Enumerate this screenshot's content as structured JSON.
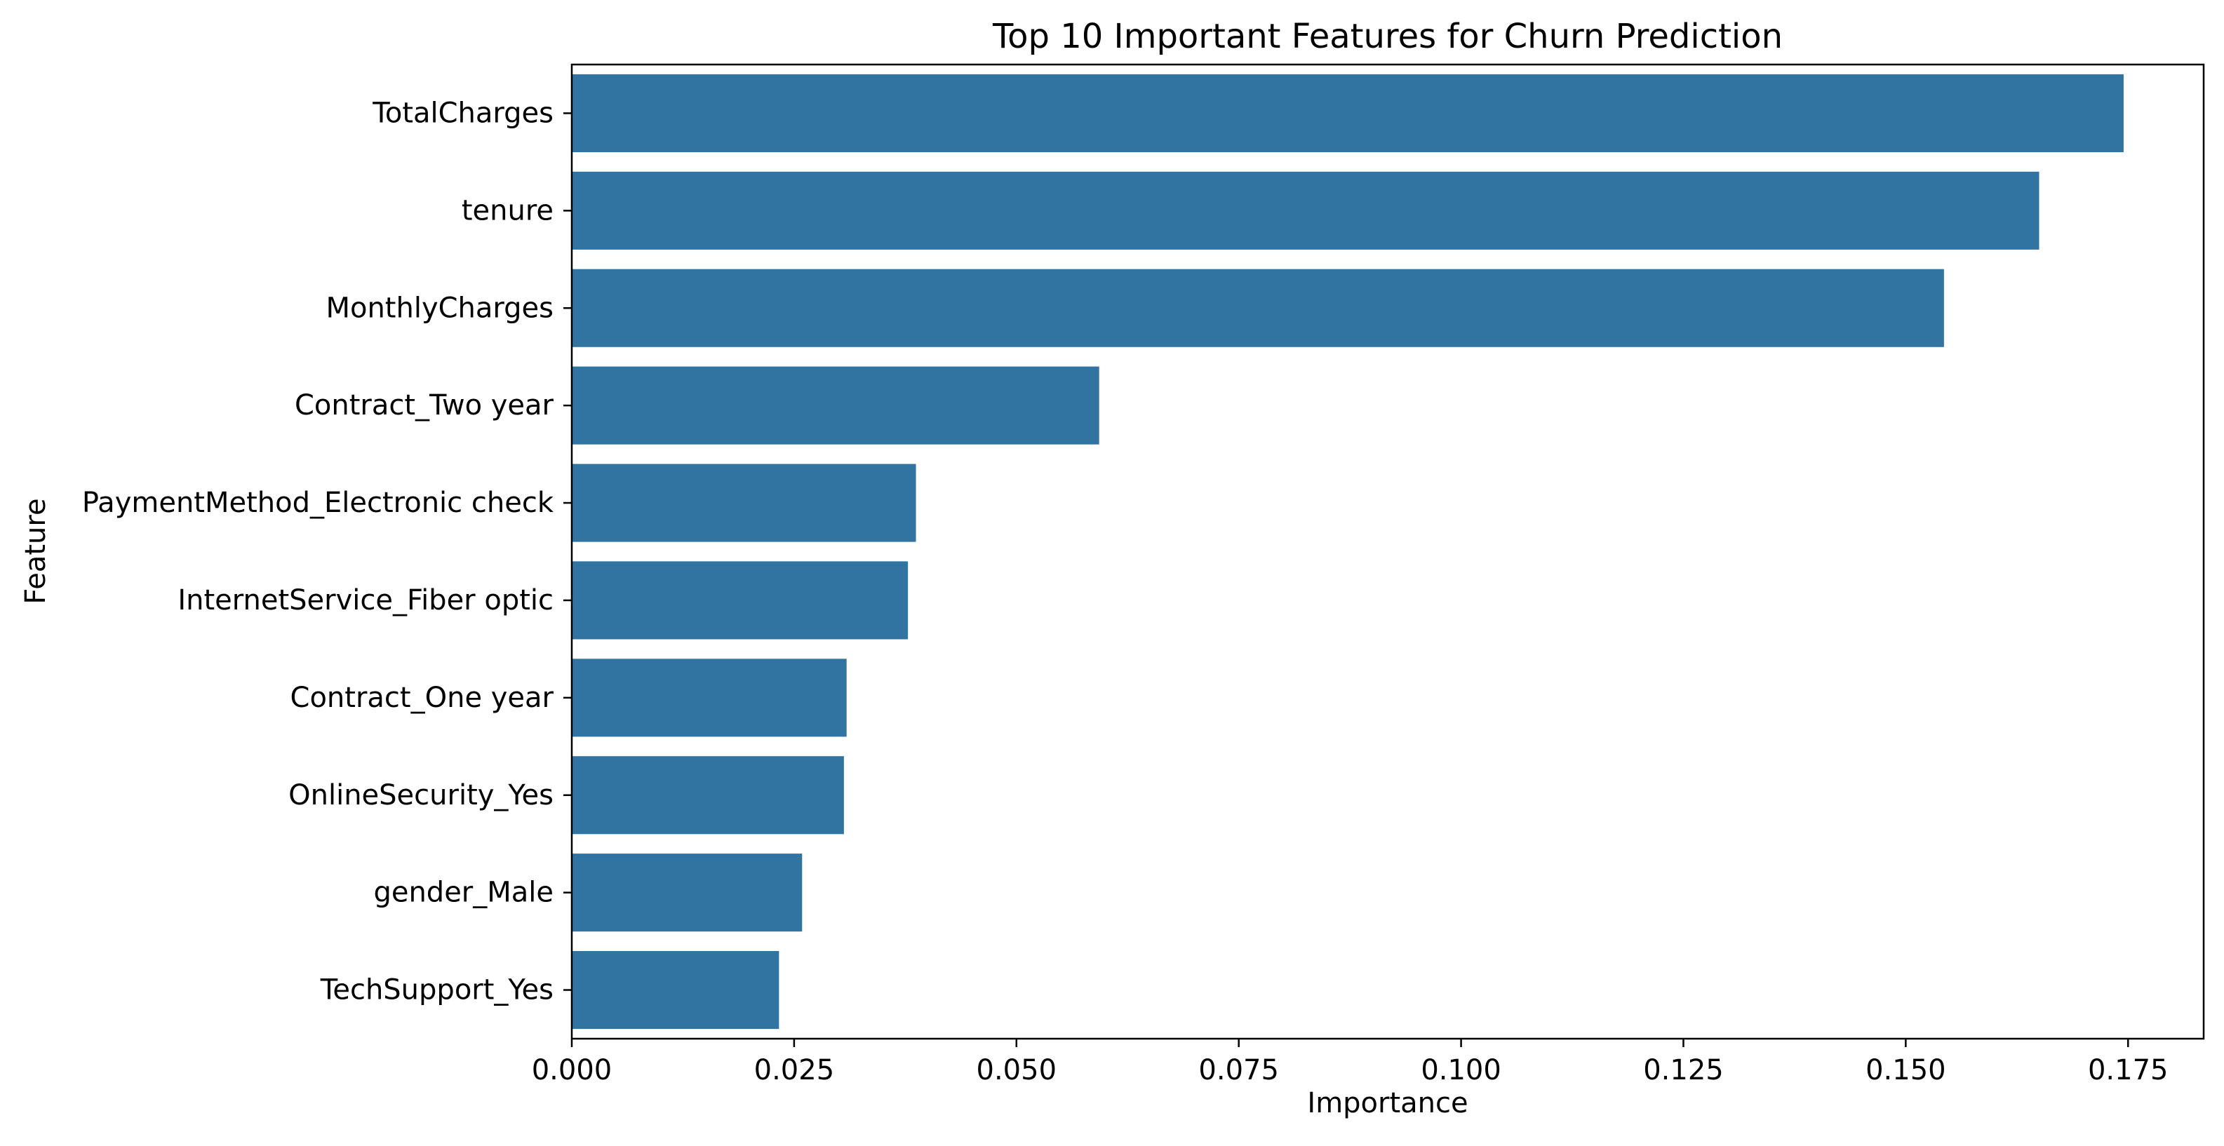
{
  "chart_data": {
    "type": "bar",
    "orientation": "horizontal",
    "title": "Top 10 Important Features for Churn Prediction",
    "xlabel": "Importance",
    "ylabel": "Feature",
    "categories": [
      "TotalCharges",
      "tenure",
      "MonthlyCharges",
      "Contract_Two year",
      "PaymentMethod_Electronic check",
      "InternetService_Fiber optic",
      "Contract_One year",
      "OnlineSecurity_Yes",
      "gender_Male",
      "TechSupport_Yes"
    ],
    "values": [
      0.1745,
      0.165,
      0.1543,
      0.0593,
      0.0387,
      0.0378,
      0.0309,
      0.0306,
      0.0259,
      0.0233
    ],
    "xlim": [
      0,
      0.1835
    ],
    "xticks": [
      0.0,
      0.025,
      0.05,
      0.075,
      0.1,
      0.125,
      0.15,
      0.175
    ],
    "xtick_labels": [
      "0.000",
      "0.025",
      "0.050",
      "0.075",
      "0.100",
      "0.125",
      "0.150",
      "0.175"
    ],
    "grid": false,
    "bar_color": "#3274a1"
  }
}
